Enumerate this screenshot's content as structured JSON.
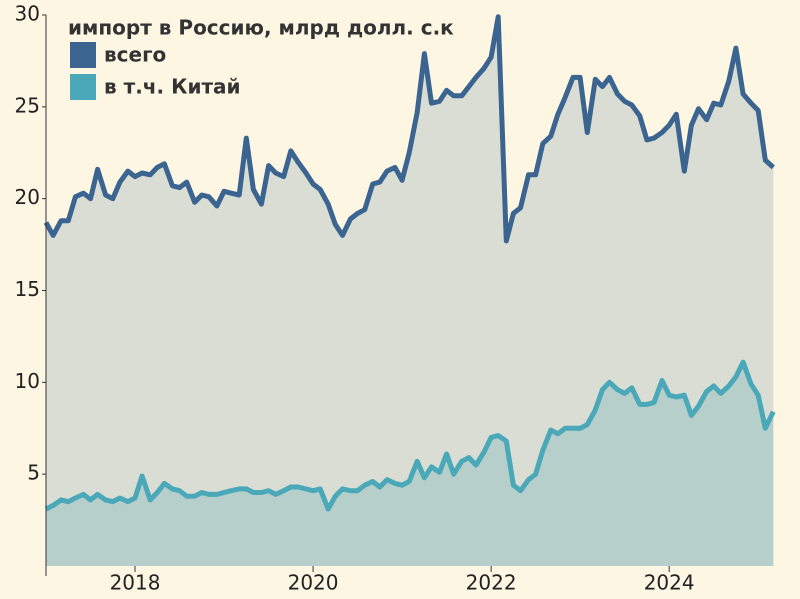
{
  "chart_data": {
    "type": "area-line",
    "legend_title": "импорт в Россию, млрд долл. с.к",
    "x": [
      2017,
      2017.08,
      2017.17,
      2017.25,
      2017.33,
      2017.42,
      2017.5,
      2017.58,
      2017.67,
      2017.75,
      2017.83,
      2017.92,
      2018,
      2018.08,
      2018.17,
      2018.25,
      2018.33,
      2018.42,
      2018.5,
      2018.58,
      2018.67,
      2018.75,
      2018.83,
      2018.92,
      2019,
      2019.08,
      2019.17,
      2019.25,
      2019.33,
      2019.42,
      2019.5,
      2019.58,
      2019.67,
      2019.75,
      2019.83,
      2019.92,
      2020,
      2020.08,
      2020.17,
      2020.25,
      2020.33,
      2020.42,
      2020.5,
      2020.58,
      2020.67,
      2020.75,
      2020.83,
      2020.92,
      2021,
      2021.08,
      2021.17,
      2021.25,
      2021.33,
      2021.42,
      2021.5,
      2021.58,
      2021.67,
      2021.75,
      2021.83,
      2021.92,
      2022,
      2022.08,
      2022.17,
      2022.25,
      2022.33,
      2022.42,
      2022.5,
      2022.58,
      2022.67,
      2022.75,
      2022.83,
      2022.92,
      2023,
      2023.08,
      2023.17,
      2023.25,
      2023.33,
      2023.42,
      2023.5,
      2023.58,
      2023.67,
      2023.75,
      2023.83,
      2023.92,
      2024,
      2024.08,
      2024.17,
      2024.25,
      2024.33,
      2024.42,
      2024.5,
      2024.58,
      2024.67,
      2024.75,
      2024.83,
      2024.92,
      2025,
      2025.08,
      2025.17
    ],
    "series": [
      {
        "name": "всего",
        "color": "#3b6590",
        "fill": "#d9ddd3",
        "values": [
          18.7,
          18.0,
          18.8,
          18.8,
          20.1,
          20.3,
          20.0,
          21.6,
          20.2,
          20.0,
          20.9,
          21.5,
          21.2,
          21.4,
          21.3,
          21.7,
          21.9,
          20.7,
          20.6,
          20.9,
          19.8,
          20.2,
          20.1,
          19.6,
          20.4,
          20.3,
          20.2,
          23.3,
          20.5,
          19.7,
          21.8,
          21.4,
          21.2,
          22.6,
          22.0,
          21.4,
          20.8,
          20.5,
          19.7,
          18.6,
          18.0,
          18.9,
          19.2,
          19.4,
          20.8,
          20.9,
          21.5,
          21.7,
          21.0,
          22.5,
          24.7,
          27.9,
          25.2,
          25.3,
          25.9,
          25.6,
          25.6,
          26.1,
          26.6,
          27.1,
          27.7,
          29.9,
          17.7,
          19.2,
          19.5,
          21.3,
          21.3,
          23.0,
          23.4,
          24.6,
          25.5,
          26.6,
          26.6,
          23.6,
          26.5,
          26.1,
          26.6,
          25.7,
          25.3,
          25.1,
          24.5,
          23.2,
          23.3,
          23.6,
          24.0,
          24.6,
          21.5,
          24.0,
          24.9,
          24.3,
          25.2,
          25.1,
          26.4,
          28.2,
          25.7,
          25.2,
          24.8,
          22.1,
          21.7
        ]
      },
      {
        "name": "в т.ч. Китай",
        "color": "#4aa8b8",
        "fill": "#b7cfcb",
        "values": [
          3.1,
          3.3,
          3.6,
          3.5,
          3.7,
          3.9,
          3.6,
          3.9,
          3.6,
          3.5,
          3.7,
          3.5,
          3.7,
          4.9,
          3.6,
          4.0,
          4.5,
          4.2,
          4.1,
          3.8,
          3.8,
          4.0,
          3.9,
          3.9,
          4.0,
          4.1,
          4.2,
          4.2,
          4.0,
          4.0,
          4.1,
          3.9,
          4.1,
          4.3,
          4.3,
          4.2,
          4.1,
          4.2,
          3.1,
          3.8,
          4.2,
          4.1,
          4.1,
          4.4,
          4.6,
          4.3,
          4.7,
          4.5,
          4.4,
          4.6,
          5.7,
          4.8,
          5.4,
          5.1,
          6.1,
          5.0,
          5.7,
          5.9,
          5.5,
          6.2,
          7.0,
          7.1,
          6.8,
          4.4,
          4.1,
          4.7,
          5.0,
          6.3,
          7.4,
          7.2,
          7.5,
          7.5,
          7.5,
          7.7,
          8.5,
          9.6,
          10.0,
          9.6,
          9.4,
          9.7,
          8.8,
          8.8,
          8.9,
          10.1,
          9.3,
          9.2,
          9.3,
          8.2,
          8.7,
          9.5,
          9.8,
          9.4,
          9.8,
          10.3,
          11.1,
          9.9,
          9.3,
          7.5,
          8.4
        ]
      }
    ],
    "xlim": [
      2017,
      2025.2
    ],
    "xticks": [
      2018,
      2020,
      2022,
      2024
    ],
    "ylim": [
      0,
      30
    ],
    "yticks": [
      5,
      10,
      15,
      20,
      25,
      30
    ]
  }
}
